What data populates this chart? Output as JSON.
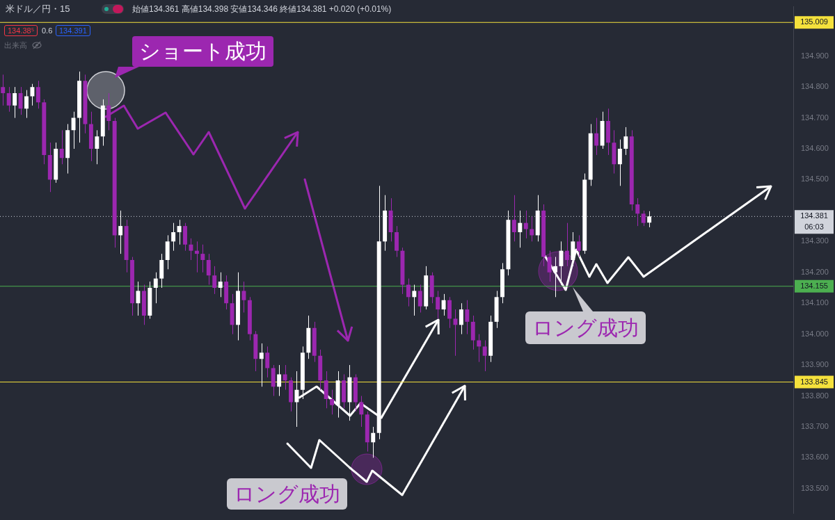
{
  "chart_data": {
    "type": "candlestick",
    "title": "米ドル／円・15",
    "subtitle": "始値134.361 高値134.398 安値134.346 終値134.381 +0.020 (+0.01%)",
    "annotations": [
      "134.38⁵",
      "0.6",
      "134.391",
      "出来高",
      "ショート成功",
      "ロング成功",
      "ロング成功"
    ],
    "categories": [
      null,
      null,
      null,
      null,
      null,
      null,
      null,
      null,
      null,
      null,
      null,
      null,
      null,
      null,
      null,
      null,
      null,
      null,
      null,
      null,
      null,
      null,
      null,
      null,
      null,
      null,
      null,
      null,
      null,
      null,
      null,
      null,
      null,
      null,
      null,
      null,
      null,
      null,
      null,
      null,
      null,
      null,
      null,
      null,
      null,
      null,
      null,
      null,
      null,
      null,
      null,
      null,
      null,
      null,
      null,
      null,
      null,
      null,
      null,
      null,
      null,
      null,
      null,
      null,
      null,
      null,
      null,
      null,
      null,
      null,
      null,
      null,
      null,
      null,
      null,
      null,
      null,
      null,
      null,
      null,
      null,
      null,
      null,
      null,
      null,
      null,
      null,
      null,
      null,
      null,
      null,
      null,
      null,
      null,
      null,
      null,
      null,
      null,
      null,
      null,
      null,
      null,
      null,
      null,
      null,
      null,
      null,
      null,
      null,
      null,
      null,
      null,
      null,
      null,
      null,
      null,
      null,
      null,
      null,
      null,
      null,
      null,
      null,
      null,
      null,
      null,
      null,
      null,
      null,
      null,
      null,
      null,
      null,
      null,
      null
    ],
    "ohlc": [
      [
        134.8,
        134.84,
        134.74,
        134.78
      ],
      [
        134.78,
        134.8,
        134.72,
        134.74
      ],
      [
        134.74,
        134.8,
        134.7,
        134.78
      ],
      [
        134.78,
        134.8,
        134.71,
        134.73
      ],
      [
        134.73,
        134.79,
        134.7,
        134.77
      ],
      [
        134.77,
        134.81,
        134.74,
        134.8
      ],
      [
        134.8,
        134.82,
        134.73,
        134.75
      ],
      [
        134.75,
        134.76,
        134.55,
        134.58
      ],
      [
        134.58,
        134.62,
        134.46,
        134.5
      ],
      [
        134.5,
        134.62,
        134.49,
        134.6
      ],
      [
        134.6,
        134.66,
        134.55,
        134.57
      ],
      [
        134.57,
        134.68,
        134.52,
        134.66
      ],
      [
        134.66,
        134.72,
        134.6,
        134.7
      ],
      [
        134.7,
        134.85,
        134.62,
        134.82
      ],
      [
        134.82,
        134.84,
        134.65,
        134.68
      ],
      [
        134.68,
        134.72,
        134.56,
        134.6
      ],
      [
        134.6,
        134.66,
        134.55,
        134.64
      ],
      [
        134.64,
        134.76,
        134.61,
        134.74
      ],
      [
        134.74,
        134.78,
        134.66,
        134.69
      ],
      [
        134.69,
        134.7,
        134.28,
        134.32
      ],
      [
        134.32,
        134.4,
        134.26,
        134.35
      ],
      [
        134.35,
        134.37,
        134.2,
        134.24
      ],
      [
        134.24,
        134.25,
        134.06,
        134.1
      ],
      [
        134.1,
        134.17,
        134.06,
        134.14
      ],
      [
        134.14,
        134.16,
        134.03,
        134.06
      ],
      [
        134.06,
        134.17,
        134.05,
        134.15
      ],
      [
        134.15,
        134.2,
        134.1,
        134.18
      ],
      [
        134.18,
        134.26,
        134.15,
        134.24
      ],
      [
        134.24,
        134.32,
        134.21,
        134.3
      ],
      [
        134.3,
        134.36,
        134.27,
        134.33
      ],
      [
        134.33,
        134.37,
        134.29,
        134.35
      ],
      [
        134.35,
        134.36,
        134.27,
        134.29
      ],
      [
        134.29,
        134.31,
        134.24,
        134.27
      ],
      [
        134.27,
        134.3,
        134.2,
        134.26
      ],
      [
        134.26,
        134.29,
        134.2,
        134.24
      ],
      [
        134.24,
        134.26,
        134.16,
        134.19
      ],
      [
        134.19,
        134.22,
        134.13,
        134.15
      ],
      [
        134.15,
        134.2,
        134.12,
        134.17
      ],
      [
        134.17,
        134.19,
        134.08,
        134.1
      ],
      [
        134.1,
        134.13,
        134.0,
        134.03
      ],
      [
        134.03,
        134.2,
        133.98,
        134.14
      ],
      [
        134.14,
        134.17,
        134.07,
        134.11
      ],
      [
        134.11,
        134.12,
        133.98,
        134.0
      ],
      [
        134.0,
        134.01,
        133.88,
        133.92
      ],
      [
        133.92,
        133.97,
        133.83,
        133.94
      ],
      [
        133.94,
        133.96,
        133.86,
        133.89
      ],
      [
        133.89,
        133.9,
        133.8,
        133.83
      ],
      [
        133.83,
        133.9,
        133.8,
        133.87
      ],
      [
        133.87,
        133.9,
        133.82,
        133.85
      ],
      [
        133.85,
        133.86,
        133.75,
        133.78
      ],
      [
        133.78,
        133.88,
        133.7,
        133.82
      ],
      [
        133.82,
        133.96,
        133.79,
        133.94
      ],
      [
        133.94,
        134.06,
        133.92,
        134.02
      ],
      [
        134.02,
        134.04,
        133.91,
        133.93
      ],
      [
        133.93,
        133.95,
        133.82,
        133.85
      ],
      [
        133.85,
        133.88,
        133.76,
        133.79
      ],
      [
        133.79,
        133.82,
        133.74,
        133.77
      ],
      [
        133.77,
        133.88,
        133.73,
        133.85
      ],
      [
        133.85,
        133.87,
        133.76,
        133.78
      ],
      [
        133.78,
        133.9,
        133.72,
        133.86
      ],
      [
        133.86,
        133.87,
        133.75,
        133.78
      ],
      [
        133.78,
        133.8,
        133.7,
        133.74
      ],
      [
        133.74,
        133.75,
        133.62,
        133.65
      ],
      [
        133.65,
        133.7,
        133.6,
        133.68
      ],
      [
        133.68,
        134.48,
        133.66,
        134.3
      ],
      [
        134.3,
        134.45,
        134.27,
        134.4
      ],
      [
        134.4,
        134.44,
        134.3,
        134.33
      ],
      [
        134.33,
        134.35,
        134.25,
        134.27
      ],
      [
        134.27,
        134.28,
        134.13,
        134.16
      ],
      [
        134.16,
        134.18,
        134.09,
        134.12
      ],
      [
        134.12,
        134.16,
        134.06,
        134.14
      ],
      [
        134.14,
        134.16,
        134.07,
        134.09
      ],
      [
        134.09,
        134.22,
        134.08,
        134.19
      ],
      [
        134.19,
        134.2,
        134.1,
        134.12
      ],
      [
        134.12,
        134.14,
        134.05,
        134.08
      ],
      [
        134.08,
        134.13,
        134.06,
        134.11
      ],
      [
        134.11,
        134.12,
        134.02,
        134.05
      ],
      [
        134.05,
        134.08,
        133.93,
        134.03
      ],
      [
        134.03,
        134.1,
        134.0,
        134.08
      ],
      [
        134.08,
        134.11,
        134.0,
        134.04
      ],
      [
        134.04,
        134.06,
        133.95,
        133.98
      ],
      [
        133.98,
        134.0,
        133.91,
        133.96
      ],
      [
        133.96,
        133.98,
        133.88,
        133.93
      ],
      [
        133.93,
        134.06,
        133.91,
        134.04
      ],
      [
        134.04,
        134.14,
        134.02,
        134.12
      ],
      [
        134.12,
        134.23,
        134.1,
        134.21
      ],
      [
        134.21,
        134.4,
        134.19,
        134.37
      ],
      [
        134.37,
        134.45,
        134.3,
        134.33
      ],
      [
        134.33,
        134.4,
        134.28,
        134.36
      ],
      [
        134.36,
        134.4,
        134.31,
        134.34
      ],
      [
        134.34,
        134.38,
        134.3,
        134.32
      ],
      [
        134.32,
        134.45,
        134.3,
        134.4
      ],
      [
        134.4,
        134.42,
        134.22,
        134.25
      ],
      [
        134.25,
        134.27,
        134.17,
        134.2
      ],
      [
        134.2,
        134.25,
        134.12,
        134.22
      ],
      [
        134.22,
        134.3,
        134.16,
        134.27
      ],
      [
        134.27,
        134.36,
        134.22,
        134.24
      ],
      [
        134.24,
        134.33,
        134.22,
        134.3
      ],
      [
        134.3,
        134.32,
        134.25,
        134.27
      ],
      [
        134.27,
        134.52,
        134.26,
        134.5
      ],
      [
        134.5,
        134.68,
        134.48,
        134.65
      ],
      [
        134.65,
        134.7,
        134.58,
        134.61
      ],
      [
        134.61,
        134.72,
        134.6,
        134.69
      ],
      [
        134.69,
        134.73,
        134.58,
        134.62
      ],
      [
        134.62,
        134.66,
        134.52,
        134.55
      ],
      [
        134.55,
        134.63,
        134.48,
        134.6
      ],
      [
        134.6,
        134.67,
        134.58,
        134.64
      ],
      [
        134.64,
        134.66,
        134.4,
        134.42
      ],
      [
        134.42,
        134.44,
        134.35,
        134.39
      ],
      [
        134.39,
        134.4,
        134.35,
        134.36
      ],
      [
        134.361,
        134.398,
        134.346,
        134.381
      ],
      null,
      null,
      null,
      null,
      null,
      null,
      null,
      null,
      null,
      null,
      null,
      null,
      null,
      null,
      null,
      null,
      null,
      null,
      null,
      null,
      null,
      null,
      null,
      null
    ],
    "colors": [
      "#9c27b0",
      "#9c27b0",
      "#ffffff",
      "#9c27b0",
      "#ffffff",
      "#ffffff",
      "#9c27b0",
      "#9c27b0",
      "#9c27b0",
      "#ffffff",
      "#9c27b0",
      "#ffffff",
      "#ffffff",
      "#ffffff",
      "#9c27b0",
      "#9c27b0",
      "#ffffff",
      "#ffffff",
      "#9c27b0",
      "#9c27b0",
      "#ffffff",
      "#9c27b0",
      "#9c27b0",
      "#ffffff",
      "#9c27b0",
      "#ffffff",
      "#ffffff",
      "#ffffff",
      "#ffffff",
      "#ffffff",
      "#ffffff",
      "#9c27b0",
      "#9c27b0",
      "#9c27b0",
      "#9c27b0",
      "#9c27b0",
      "#9c27b0",
      "#ffffff",
      "#9c27b0",
      "#9c27b0",
      "#ffffff",
      "#9c27b0",
      "#9c27b0",
      "#9c27b0",
      "#ffffff",
      "#9c27b0",
      "#9c27b0",
      "#ffffff",
      "#9c27b0",
      "#9c27b0",
      "#ffffff",
      "#ffffff",
      "#ffffff",
      "#9c27b0",
      "#9c27b0",
      "#9c27b0",
      "#9c27b0",
      "#ffffff",
      "#9c27b0",
      "#ffffff",
      "#9c27b0",
      "#9c27b0",
      "#9c27b0",
      "#ffffff",
      "#ffffff",
      "#ffffff",
      "#9c27b0",
      "#9c27b0",
      "#9c27b0",
      "#9c27b0",
      "#ffffff",
      "#9c27b0",
      "#ffffff",
      "#9c27b0",
      "#9c27b0",
      "#ffffff",
      "#9c27b0",
      "#9c27b0",
      "#ffffff",
      "#9c27b0",
      "#9c27b0",
      "#9c27b0",
      "#9c27b0",
      "#ffffff",
      "#ffffff",
      "#ffffff",
      "#ffffff",
      "#9c27b0",
      "#ffffff",
      "#9c27b0",
      "#9c27b0",
      "#ffffff",
      "#9c27b0",
      "#9c27b0",
      "#ffffff",
      "#ffffff",
      "#9c27b0",
      "#ffffff",
      "#9c27b0",
      "#ffffff",
      "#ffffff",
      "#9c27b0",
      "#ffffff",
      "#9c27b0",
      "#9c27b0",
      "#ffffff",
      "#ffffff",
      "#9c27b0",
      "#9c27b0",
      "#9c27b0",
      "#ffffff",
      null,
      null,
      null,
      null,
      null,
      null,
      null,
      null,
      null,
      null,
      null,
      null,
      null,
      null,
      null,
      null,
      null,
      null,
      null,
      null,
      null,
      null,
      null,
      null
    ],
    "ylim": [
      133.42,
      135.06
    ],
    "yticks": [
      {
        "value": 133.5,
        "label": "133.500"
      },
      {
        "value": 133.6,
        "label": "133.600"
      },
      {
        "value": 133.7,
        "label": "133.700"
      },
      {
        "value": 133.8,
        "label": "133.800"
      },
      {
        "value": 133.9,
        "label": "133.900"
      },
      {
        "value": 134.0,
        "label": "134.000"
      },
      {
        "value": 134.1,
        "label": "134.100"
      },
      {
        "value": 134.2,
        "label": "134.200"
      },
      {
        "value": 134.3,
        "label": "134.300"
      },
      {
        "value": 134.5,
        "label": "134.500"
      },
      {
        "value": 134.6,
        "label": "134.600"
      },
      {
        "value": 134.7,
        "label": "134.700"
      },
      {
        "value": 134.8,
        "label": "134.800"
      },
      {
        "value": 134.9,
        "label": "134.900"
      }
    ],
    "tick_labels": "y",
    "ref_lines": [
      {
        "axis": "y",
        "value": 135.009,
        "label": "135.009",
        "color": "#f5e13c"
      },
      {
        "axis": "y",
        "value": 134.381,
        "label": "134.381 06:03",
        "color": "#d1d4dc",
        "line_style": "dotted"
      },
      {
        "axis": "y",
        "value": 134.155,
        "label": "134.155",
        "color": "#4caf50"
      },
      {
        "axis": "y",
        "value": 133.845,
        "label": "133.845",
        "color": "#f5e13c"
      }
    ]
  }
}
